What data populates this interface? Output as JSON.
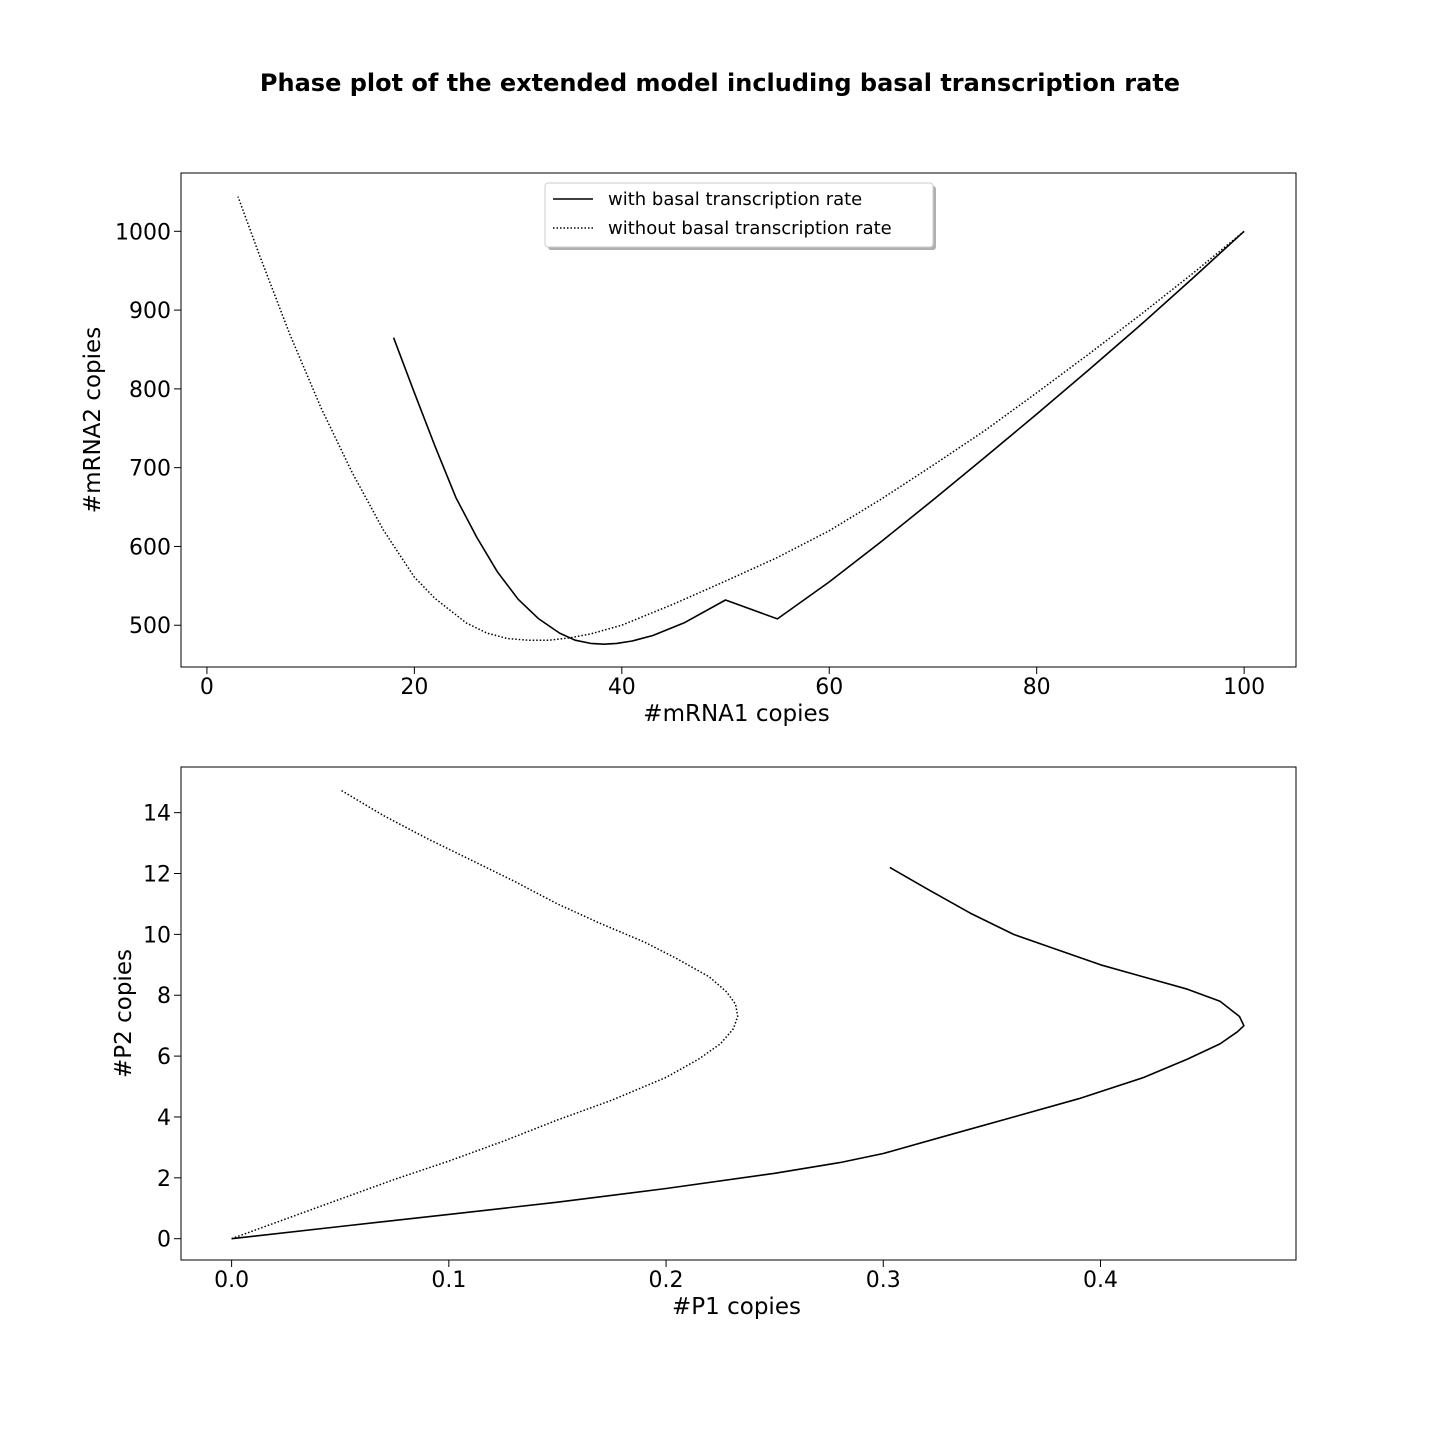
{
  "figure": {
    "title": "Phase plot of the extended model including basal transcription rate"
  },
  "chart_data": [
    {
      "type": "line",
      "xlabel": "#mRNA1 copies",
      "ylabel": "#mRNA2 copies",
      "xlim": [
        -2.5,
        105
      ],
      "ylim": [
        447,
        1074
      ],
      "xticks": [
        0,
        20,
        40,
        60,
        80,
        100
      ],
      "yticks": [
        500,
        600,
        700,
        800,
        900,
        1000
      ],
      "grid": false,
      "legend": {
        "position": "upper center",
        "entries": [
          "with basal transcription rate",
          "without basal transcription rate"
        ]
      },
      "series": [
        {
          "name": "with basal transcription rate",
          "style": "solid",
          "x": [
            100,
            95,
            90,
            85,
            80,
            75,
            70,
            65,
            60,
            55,
            50,
            46,
            43,
            41,
            39.5,
            38.3,
            37,
            35.5,
            34,
            32,
            30,
            28,
            26,
            24,
            22,
            20,
            18
          ],
          "y": [
            1000,
            940,
            881,
            824,
            768,
            713,
            659,
            606,
            555,
            508,
            532,
            503,
            487,
            480,
            477,
            476,
            477,
            481,
            490,
            508,
            533,
            568,
            612,
            662,
            727,
            795,
            865
          ]
        },
        {
          "name": "without basal transcription rate",
          "style": "dotted",
          "x": [
            100,
            95,
            90,
            85,
            80,
            75,
            70,
            65,
            60,
            55,
            50,
            45,
            40,
            37,
            35,
            33,
            31,
            29,
            27,
            25,
            22,
            20,
            17,
            14,
            11,
            8,
            5,
            3
          ],
          "y": [
            1000,
            946,
            894,
            844,
            795,
            747,
            703,
            660,
            620,
            586,
            556,
            527,
            500,
            489,
            484,
            481,
            481,
            483,
            490,
            503,
            534,
            561,
            621,
            694,
            776,
            869,
            972,
            1044
          ]
        }
      ]
    },
    {
      "type": "line",
      "xlabel": "#P1 copies",
      "ylabel": "#P2 copies",
      "xlim": [
        -0.0233,
        0.49
      ],
      "ylim": [
        -0.7,
        15.5
      ],
      "xticks": [
        0.0,
        0.1,
        0.2,
        0.3,
        0.4
      ],
      "ytick_labels": [
        "0",
        "2",
        "4",
        "6",
        "8",
        "10",
        "12",
        "14"
      ],
      "xtick_labels": [
        "0.0",
        "0.1",
        "0.2",
        "0.3",
        "0.4"
      ],
      "yticks": [
        0,
        2,
        4,
        6,
        8,
        10,
        12,
        14
      ],
      "grid": false,
      "series": [
        {
          "name": "with basal transcription rate",
          "style": "solid",
          "x": [
            0,
            0.05,
            0.1,
            0.15,
            0.2,
            0.25,
            0.28,
            0.3,
            0.33,
            0.36,
            0.39,
            0.42,
            0.44,
            0.455,
            0.463,
            0.466,
            0.464,
            0.455,
            0.44,
            0.42,
            0.4,
            0.38,
            0.36,
            0.34,
            0.32,
            0.303
          ],
          "y": [
            0,
            0.4,
            0.8,
            1.2,
            1.65,
            2.15,
            2.5,
            2.8,
            3.4,
            4.0,
            4.6,
            5.3,
            5.9,
            6.4,
            6.8,
            7.0,
            7.3,
            7.8,
            8.2,
            8.6,
            9.0,
            9.5,
            10.0,
            10.7,
            11.5,
            12.2
          ]
        },
        {
          "name": "without basal transcription rate",
          "style": "dotted",
          "x": [
            0,
            0.025,
            0.05,
            0.075,
            0.1,
            0.125,
            0.15,
            0.175,
            0.2,
            0.215,
            0.225,
            0.231,
            0.233,
            0.232,
            0.228,
            0.22,
            0.205,
            0.19,
            0.17,
            0.15,
            0.13,
            0.11,
            0.09,
            0.07,
            0.05
          ],
          "y": [
            0,
            0.65,
            1.3,
            1.95,
            2.55,
            3.2,
            3.9,
            4.55,
            5.3,
            5.9,
            6.4,
            6.9,
            7.3,
            7.7,
            8.1,
            8.6,
            9.2,
            9.75,
            10.35,
            11.0,
            11.75,
            12.45,
            13.15,
            13.9,
            14.75
          ]
        }
      ]
    }
  ]
}
